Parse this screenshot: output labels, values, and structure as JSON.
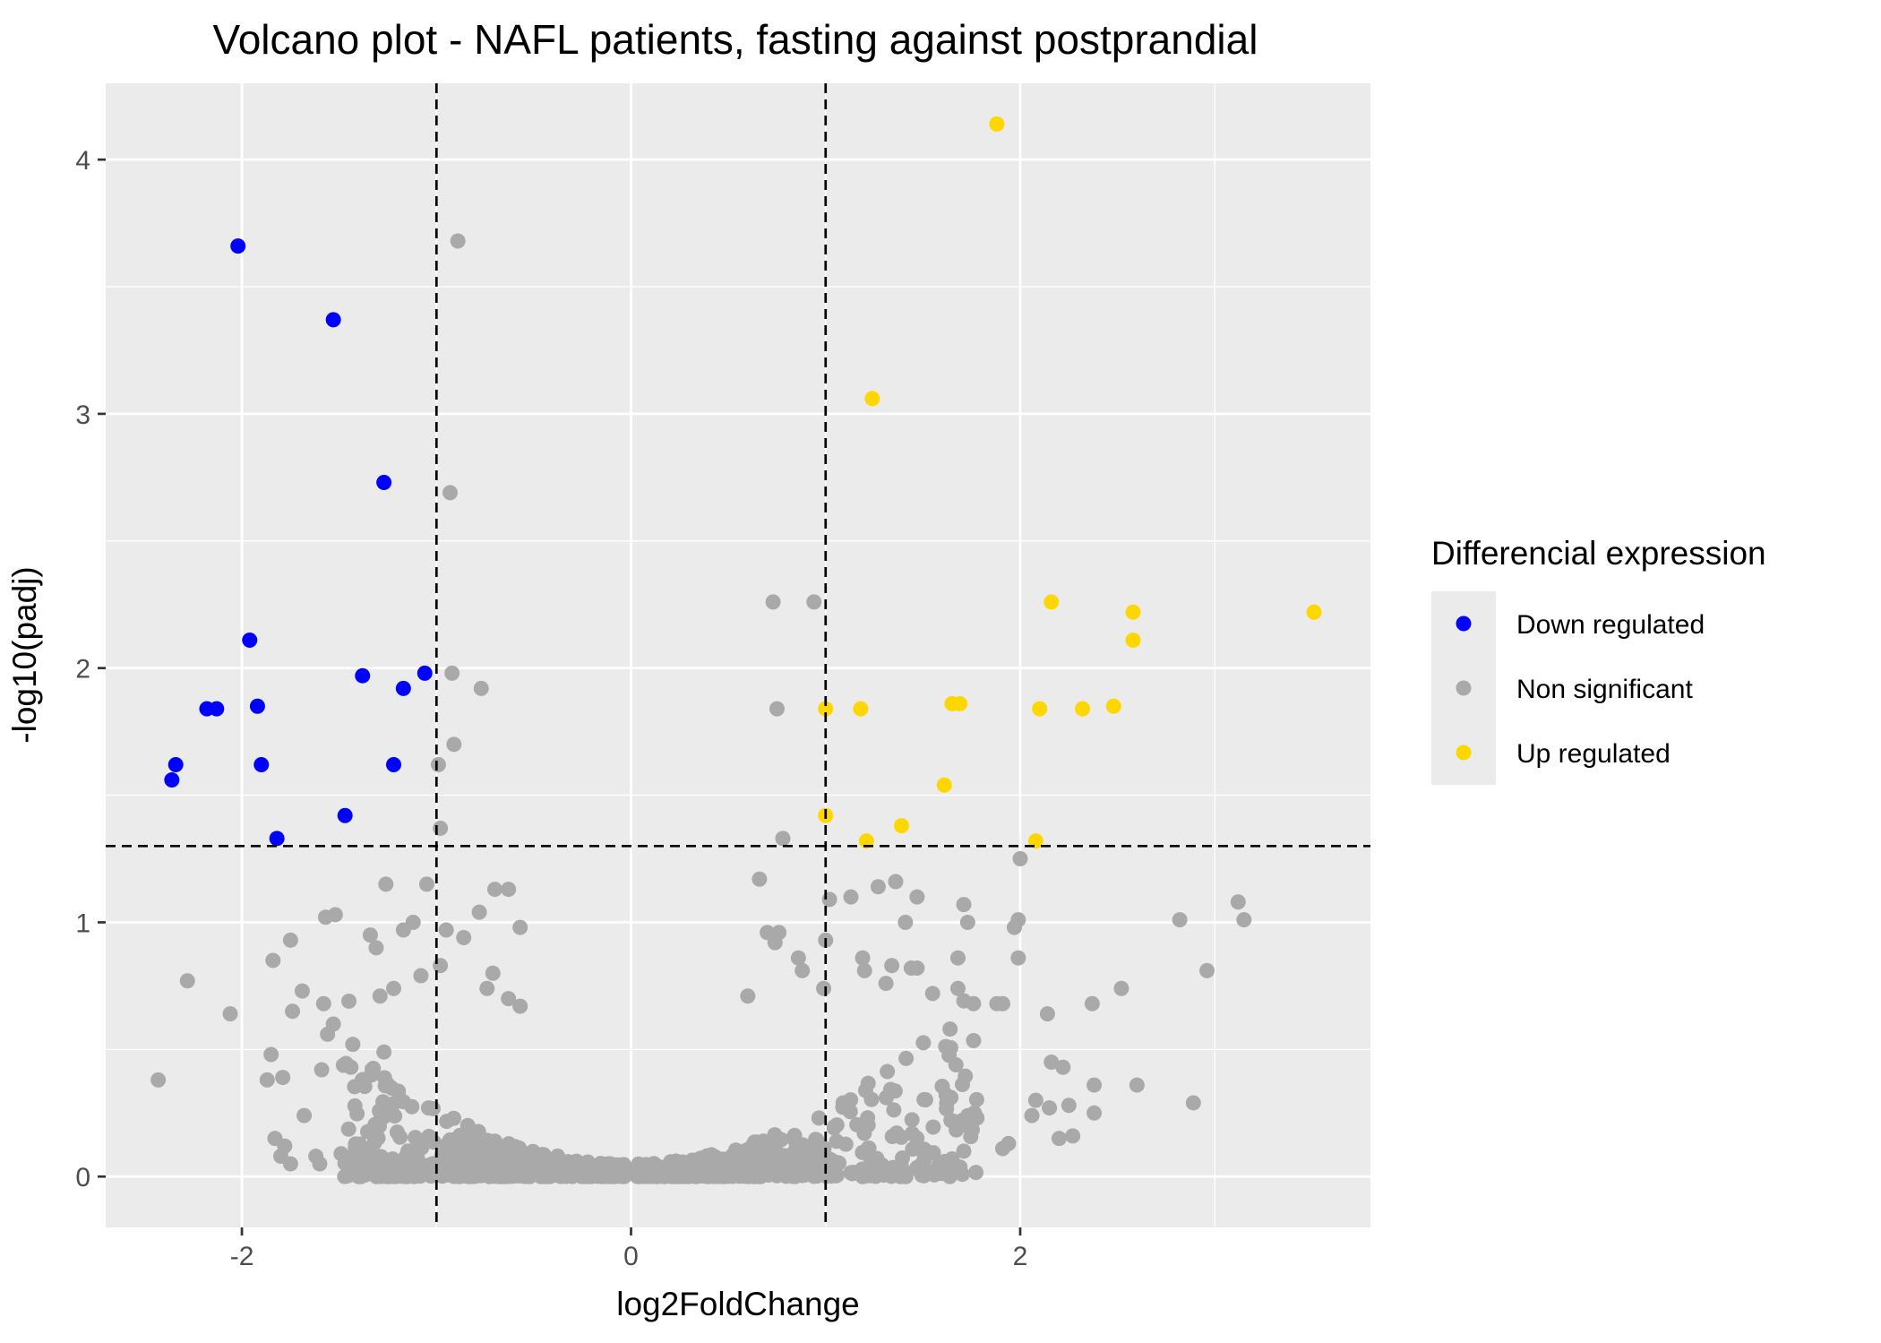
{
  "chart_data": {
    "type": "scatter",
    "title": "Volcano plot - NAFL patients, fasting against postprandial",
    "xlabel": "log2FoldChange",
    "ylabel": "-log10(padj)",
    "xlim": [
      -2.7,
      3.8
    ],
    "ylim": [
      -0.2,
      4.3
    ],
    "x_ticks": [
      -2,
      0,
      2
    ],
    "y_ticks": [
      0,
      1,
      2,
      3,
      4
    ],
    "x_tick_labels": [
      "-2",
      "0",
      "2"
    ],
    "y_tick_labels": [
      "0",
      "1",
      "2",
      "3",
      "4"
    ],
    "grid": true,
    "thresholds": {
      "log2fc": [
        -1,
        1
      ],
      "neg_log10_padj": 1.3
    },
    "colors": {
      "Down regulated": "#0000ff",
      "Non significant": "#a9a9a9",
      "Up regulated": "#ffd700",
      "panel": "#ebebeb",
      "grid": "#ffffff",
      "threshold_line": "#000000"
    },
    "legend": {
      "title": "Differencial expression",
      "position": "right",
      "entries": [
        "Down regulated",
        "Non significant",
        "Up regulated"
      ]
    },
    "series": [
      {
        "name": "Down regulated",
        "points": [
          [
            -2.02,
            3.66
          ],
          [
            -1.53,
            3.37
          ],
          [
            -1.27,
            2.73
          ],
          [
            -1.96,
            2.11
          ],
          [
            -1.38,
            1.97
          ],
          [
            -1.06,
            1.98
          ],
          [
            -1.17,
            1.92
          ],
          [
            -2.18,
            1.84
          ],
          [
            -2.13,
            1.84
          ],
          [
            -1.92,
            1.85
          ],
          [
            -2.34,
            1.62
          ],
          [
            -1.9,
            1.62
          ],
          [
            -1.22,
            1.62
          ],
          [
            -2.36,
            1.56
          ],
          [
            -1.47,
            1.42
          ],
          [
            -1.82,
            1.33
          ]
        ]
      },
      {
        "name": "Up regulated",
        "points": [
          [
            1.88,
            4.14
          ],
          [
            1.24,
            3.06
          ],
          [
            2.16,
            2.26
          ],
          [
            2.58,
            2.22
          ],
          [
            3.51,
            2.22
          ],
          [
            2.58,
            2.11
          ],
          [
            1.65,
            1.86
          ],
          [
            1.69,
            1.86
          ],
          [
            1.0,
            1.84
          ],
          [
            1.18,
            1.84
          ],
          [
            2.1,
            1.84
          ],
          [
            2.32,
            1.84
          ],
          [
            2.48,
            1.85
          ],
          [
            1.61,
            1.54
          ],
          [
            1.0,
            1.42
          ],
          [
            1.39,
            1.38
          ],
          [
            1.21,
            1.32
          ],
          [
            2.08,
            1.32
          ]
        ]
      },
      {
        "name": "Non significant",
        "points": [
          [
            -0.89,
            3.68
          ],
          [
            -0.93,
            2.69
          ],
          [
            0.73,
            2.26
          ],
          [
            0.94,
            2.26
          ],
          [
            -0.92,
            1.98
          ],
          [
            -0.77,
            1.92
          ],
          [
            0.75,
            1.84
          ],
          [
            -0.91,
            1.7
          ],
          [
            -0.99,
            1.62
          ],
          [
            0.78,
            1.33
          ],
          [
            -0.98,
            1.37
          ],
          [
            2.0,
            1.25
          ],
          [
            -1.05,
            1.15
          ],
          [
            -1.26,
            1.15
          ],
          [
            0.66,
            1.17
          ],
          [
            1.02,
            1.09
          ],
          [
            1.13,
            1.1
          ],
          [
            1.27,
            1.14
          ],
          [
            1.36,
            1.16
          ],
          [
            1.47,
            1.1
          ],
          [
            1.71,
            1.07
          ],
          [
            3.12,
            1.08
          ],
          [
            3.15,
            1.01
          ],
          [
            2.82,
            1.01
          ],
          [
            1.99,
            1.01
          ],
          [
            1.73,
            1.0
          ],
          [
            1.41,
            1.0
          ],
          [
            -1.12,
            1.0
          ],
          [
            -1.17,
            0.97
          ],
          [
            -1.34,
            0.95
          ],
          [
            -0.95,
            0.97
          ],
          [
            -0.7,
            1.13
          ],
          [
            -0.63,
            1.13
          ],
          [
            -0.78,
            1.04
          ],
          [
            -0.57,
            0.98
          ],
          [
            -0.86,
            0.94
          ],
          [
            -1.57,
            1.02
          ],
          [
            -1.52,
            1.03
          ],
          [
            -1.75,
            0.93
          ],
          [
            -1.84,
            0.85
          ],
          [
            -2.28,
            0.77
          ],
          [
            -2.06,
            0.64
          ],
          [
            -2.43,
            0.38
          ],
          [
            -1.85,
            0.48
          ],
          [
            -1.87,
            0.38
          ],
          [
            -1.79,
            0.39
          ],
          [
            -1.74,
            0.65
          ],
          [
            -1.69,
            0.73
          ],
          [
            -1.58,
            0.68
          ],
          [
            -1.53,
            0.6
          ],
          [
            -1.45,
            0.69
          ],
          [
            -1.29,
            0.71
          ],
          [
            -1.22,
            0.74
          ],
          [
            -1.31,
            0.9
          ],
          [
            -1.08,
            0.79
          ],
          [
            -0.98,
            0.83
          ],
          [
            -0.71,
            0.8
          ],
          [
            -0.74,
            0.74
          ],
          [
            -0.63,
            0.7
          ],
          [
            -0.57,
            0.67
          ],
          [
            0.6,
            0.71
          ],
          [
            0.7,
            0.96
          ],
          [
            0.76,
            0.96
          ],
          [
            0.74,
            0.92
          ],
          [
            0.86,
            0.86
          ],
          [
            0.88,
            0.81
          ],
          [
            0.99,
            0.74
          ],
          [
            1.0,
            0.93
          ],
          [
            1.19,
            0.86
          ],
          [
            1.2,
            0.81
          ],
          [
            1.31,
            0.76
          ],
          [
            1.34,
            0.83
          ],
          [
            1.44,
            0.82
          ],
          [
            1.47,
            0.82
          ],
          [
            1.55,
            0.72
          ],
          [
            1.68,
            0.86
          ],
          [
            1.68,
            0.74
          ],
          [
            1.76,
            0.68
          ],
          [
            1.88,
            0.68
          ],
          [
            1.91,
            0.68
          ],
          [
            1.97,
            0.98
          ],
          [
            1.99,
            0.86
          ],
          [
            2.14,
            0.64
          ],
          [
            2.37,
            0.68
          ],
          [
            2.52,
            0.74
          ],
          [
            2.96,
            0.81
          ],
          [
            2.89,
            0.29
          ],
          [
            2.6,
            0.36
          ],
          [
            2.38,
            0.36
          ],
          [
            2.38,
            0.25
          ],
          [
            2.25,
            0.28
          ],
          [
            2.16,
            0.45
          ],
          [
            2.22,
            0.43
          ],
          [
            2.15,
            0.27
          ],
          [
            2.08,
            0.3
          ],
          [
            2.06,
            0.24
          ],
          [
            2.27,
            0.16
          ],
          [
            2.2,
            0.15
          ],
          [
            1.94,
            0.13
          ],
          [
            1.91,
            0.11
          ],
          [
            1.71,
            0.1
          ],
          [
            -1.75,
            0.05
          ],
          [
            -1.8,
            0.08
          ],
          [
            -1.78,
            0.12
          ],
          [
            -1.83,
            0.15
          ],
          [
            -1.6,
            0.05
          ],
          [
            -1.62,
            0.08
          ],
          [
            -1.49,
            0.09
          ],
          [
            -1.38,
            0.1
          ],
          [
            -1.68,
            0.24
          ],
          [
            -1.59,
            0.42
          ],
          [
            -1.56,
            0.56
          ],
          [
            -1.43,
            0.52
          ],
          [
            -1.27,
            0.49
          ]
        ]
      }
    ]
  }
}
